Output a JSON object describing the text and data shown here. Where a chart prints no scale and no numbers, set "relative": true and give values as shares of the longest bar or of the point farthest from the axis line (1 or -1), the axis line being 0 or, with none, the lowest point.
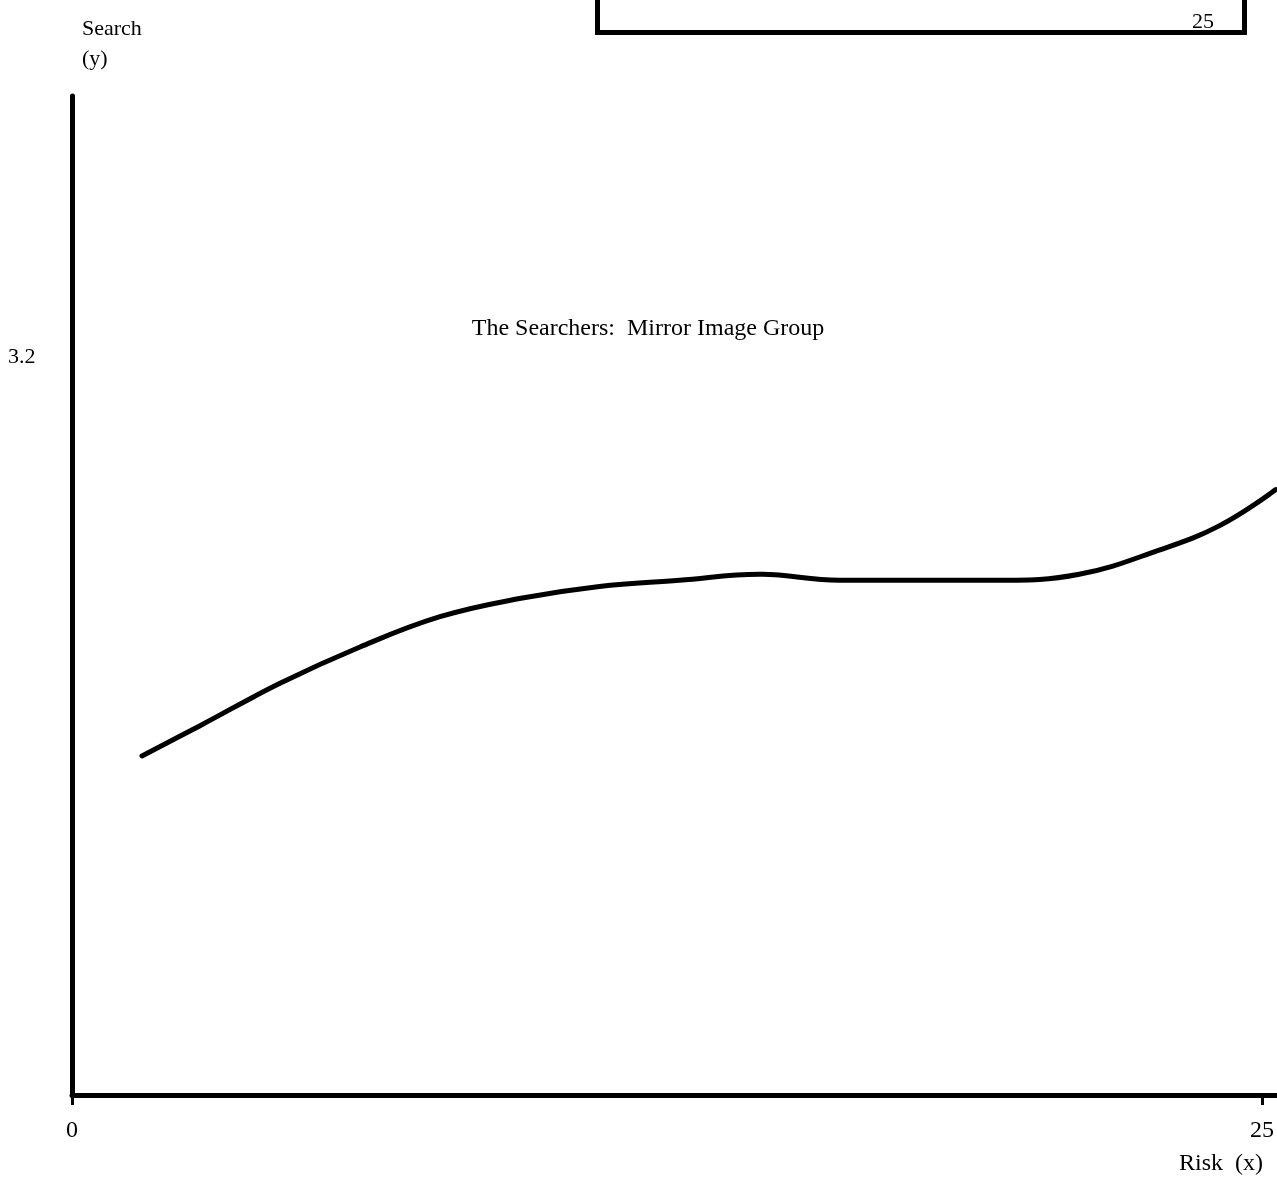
{
  "chart_data": {
    "type": "line",
    "title": "The Searchers:  Mirror Image Group",
    "xlabel": "Risk  (x)",
    "annotations": [
      "25",
      "3.2",
      "Search\n(y)"
    ],
    "relative": true,
    "x": [
      1.47,
      2.69,
      4.37,
      6.05,
      7.73,
      9.4,
      11.08,
      12.76,
      14.44,
      16.12,
      17.8,
      19.48,
      21.16,
      22.84,
      24.1,
      25.29
    ],
    "series": [
      {
        "color": "#000000",
        "values": [
          0.56,
          0.61,
          0.68,
          0.74,
          0.79,
          0.82,
          0.84,
          0.85,
          0.86,
          0.85,
          0.85,
          0.85,
          0.86,
          0.9,
          0.94,
          1
        ]
      }
    ],
    "xlim": [
      0,
      25.3
    ],
    "xticks": [
      0,
      25
    ],
    "grid": false,
    "marker": "none",
    "line_style": "solid"
  }
}
